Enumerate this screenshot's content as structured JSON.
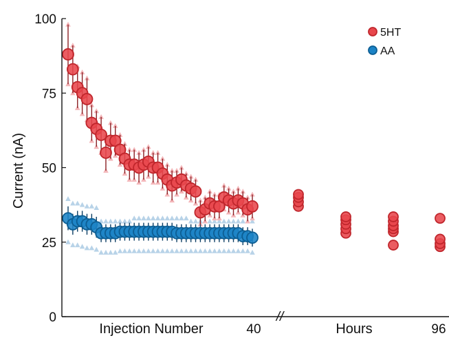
{
  "chart_data": {
    "type": "scatter",
    "ylabel": "Current (nA)",
    "ylim": [
      0,
      100
    ],
    "yticks": [
      0,
      25,
      50,
      75,
      100
    ],
    "x_axis": {
      "injection_label": "Injection Number",
      "injection_range": [
        1,
        40
      ],
      "injection_tick": "40",
      "break_mark": "//",
      "hours_label": "Hours",
      "hours_tick": "96"
    },
    "grid": false,
    "legend_position": "top-right",
    "colors": {
      "5HT": "#e8474c",
      "AA": "#1b83c6",
      "5HT_faint": "#f3b5b8",
      "AA_faint": "#b8d3e8"
    },
    "series": [
      {
        "name": "5HT",
        "injection_means": [
          88,
          83,
          77,
          75,
          73,
          65,
          63,
          61,
          55,
          59,
          59,
          56,
          53,
          51,
          51,
          50,
          51,
          52,
          50,
          50,
          48,
          46,
          44,
          45,
          46,
          44,
          43,
          42,
          35,
          36,
          38,
          37,
          37,
          40,
          39,
          38,
          39,
          38,
          36,
          37
        ],
        "injection_error": [
          10,
          8,
          7,
          7,
          7,
          6,
          6,
          6,
          6,
          6,
          5,
          5,
          5,
          5,
          5,
          5,
          5,
          5,
          5,
          5,
          5,
          5,
          5,
          4,
          4,
          4,
          4,
          4,
          4,
          4,
          4,
          4,
          4,
          4,
          4,
          4,
          4,
          4,
          4,
          4
        ],
        "injection_upper": [
          98,
          91,
          84,
          82,
          80,
          71,
          69,
          67,
          61,
          65,
          64,
          61,
          58,
          56,
          56,
          55,
          56,
          57,
          55,
          55,
          53,
          51,
          49,
          49,
          50,
          48,
          47,
          46,
          39,
          40,
          42,
          41,
          41,
          44,
          43,
          42,
          43,
          42,
          40,
          41
        ],
        "injection_lower": [
          78,
          75,
          70,
          68,
          66,
          59,
          57,
          55,
          49,
          53,
          54,
          51,
          48,
          46,
          46,
          45,
          46,
          47,
          45,
          45,
          43,
          41,
          39,
          41,
          42,
          40,
          39,
          38,
          31,
          32,
          34,
          33,
          33,
          36,
          35,
          34,
          35,
          34,
          32,
          33
        ],
        "hours_groups": [
          {
            "values": [
              37,
              38.5,
              40,
              41
            ]
          },
          {
            "values": [
              28,
              29.5,
              31,
              32.5,
              33.5
            ]
          },
          {
            "values": [
              24,
              28.5,
              29.5,
              30.5,
              32,
              33.5
            ]
          },
          {
            "values": [
              23.5,
              24.5,
              26,
              33
            ]
          }
        ]
      },
      {
        "name": "AA",
        "injection_means": [
          33,
          31,
          32,
          32,
          31,
          31,
          30,
          28,
          28,
          28,
          28,
          28.5,
          28.5,
          28.5,
          28.5,
          28.5,
          28.5,
          28.5,
          28.5,
          28.5,
          28.5,
          28.5,
          28.5,
          28,
          28,
          28,
          28,
          28,
          28,
          28,
          28,
          28,
          28,
          28,
          28,
          28,
          28,
          27,
          27,
          26.5
        ],
        "injection_error": [
          4,
          3.5,
          3.5,
          3.5,
          3.5,
          3.5,
          3.5,
          3,
          3,
          3,
          3,
          3,
          3,
          3,
          3,
          3,
          3,
          3,
          3,
          3,
          3,
          3,
          3,
          3,
          3,
          3,
          3,
          3,
          3,
          3,
          3,
          3,
          3,
          3,
          3,
          3,
          3,
          3,
          3,
          3
        ],
        "injection_upper": [
          39.5,
          38,
          38,
          37.5,
          37,
          37,
          36.5,
          32,
          32,
          32,
          32,
          32,
          32,
          32,
          33,
          33,
          33,
          33,
          33,
          33,
          33,
          33,
          33,
          33,
          33,
          33,
          32,
          32,
          32,
          32,
          32,
          32,
          32,
          32,
          32,
          32,
          32,
          32,
          32,
          32
        ],
        "injection_lower": [
          25,
          24,
          24,
          23.5,
          23,
          23,
          22.5,
          21.5,
          21.5,
          21.5,
          21.5,
          22,
          22,
          22,
          22,
          22,
          22,
          22,
          22,
          22,
          22,
          22,
          22,
          22,
          22,
          22,
          22,
          22,
          22,
          22,
          22,
          22,
          22,
          22,
          22,
          22,
          22,
          22,
          22,
          21.5
        ]
      }
    ]
  }
}
